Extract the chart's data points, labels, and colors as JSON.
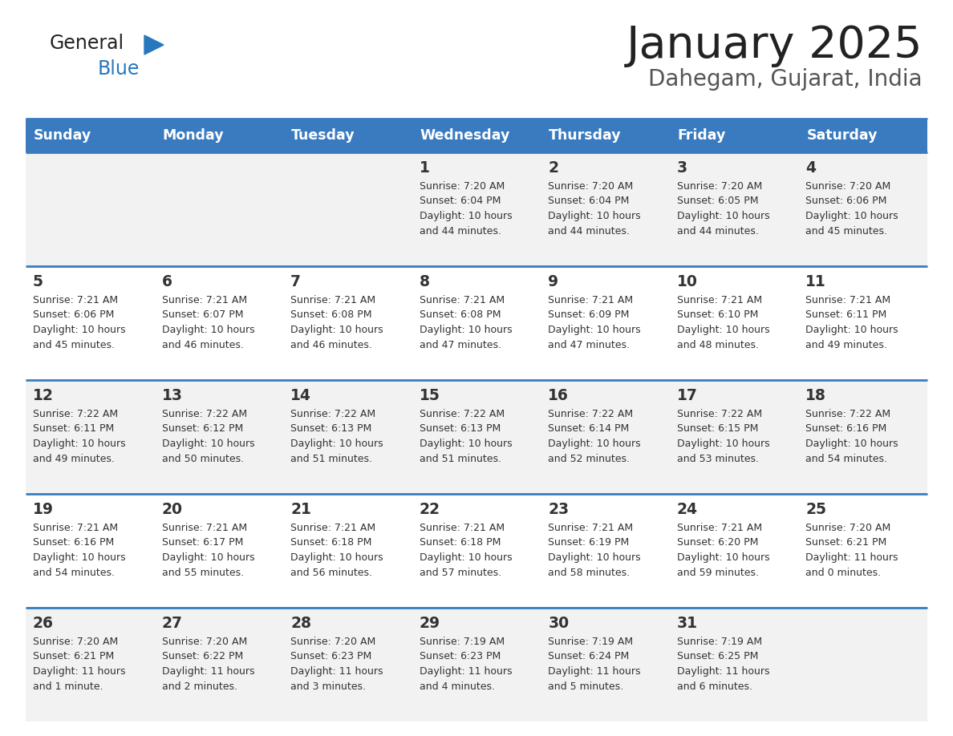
{
  "title": "January 2025",
  "subtitle": "Dahegam, Gujarat, India",
  "days_of_week": [
    "Sunday",
    "Monday",
    "Tuesday",
    "Wednesday",
    "Thursday",
    "Friday",
    "Saturday"
  ],
  "header_bg": "#3a7bbf",
  "header_text_color": "#ffffff",
  "row_bg_odd": "#f2f2f2",
  "row_bg_even": "#ffffff",
  "cell_text_color": "#333333",
  "grid_line_color": "#3a7bbf",
  "title_color": "#222222",
  "subtitle_color": "#555555",
  "logo_general_color": "#222222",
  "logo_blue_color": "#2878be",
  "logo_triangle_color": "#2878be",
  "calendar": [
    [
      null,
      null,
      null,
      {
        "day": 1,
        "sunrise": "7:20 AM",
        "sunset": "6:04 PM",
        "daylight": "10 hours and 44 minutes."
      },
      {
        "day": 2,
        "sunrise": "7:20 AM",
        "sunset": "6:04 PM",
        "daylight": "10 hours and 44 minutes."
      },
      {
        "day": 3,
        "sunrise": "7:20 AM",
        "sunset": "6:05 PM",
        "daylight": "10 hours and 44 minutes."
      },
      {
        "day": 4,
        "sunrise": "7:20 AM",
        "sunset": "6:06 PM",
        "daylight": "10 hours and 45 minutes."
      }
    ],
    [
      {
        "day": 5,
        "sunrise": "7:21 AM",
        "sunset": "6:06 PM",
        "daylight": "10 hours and 45 minutes."
      },
      {
        "day": 6,
        "sunrise": "7:21 AM",
        "sunset": "6:07 PM",
        "daylight": "10 hours and 46 minutes."
      },
      {
        "day": 7,
        "sunrise": "7:21 AM",
        "sunset": "6:08 PM",
        "daylight": "10 hours and 46 minutes."
      },
      {
        "day": 8,
        "sunrise": "7:21 AM",
        "sunset": "6:08 PM",
        "daylight": "10 hours and 47 minutes."
      },
      {
        "day": 9,
        "sunrise": "7:21 AM",
        "sunset": "6:09 PM",
        "daylight": "10 hours and 47 minutes."
      },
      {
        "day": 10,
        "sunrise": "7:21 AM",
        "sunset": "6:10 PM",
        "daylight": "10 hours and 48 minutes."
      },
      {
        "day": 11,
        "sunrise": "7:21 AM",
        "sunset": "6:11 PM",
        "daylight": "10 hours and 49 minutes."
      }
    ],
    [
      {
        "day": 12,
        "sunrise": "7:22 AM",
        "sunset": "6:11 PM",
        "daylight": "10 hours and 49 minutes."
      },
      {
        "day": 13,
        "sunrise": "7:22 AM",
        "sunset": "6:12 PM",
        "daylight": "10 hours and 50 minutes."
      },
      {
        "day": 14,
        "sunrise": "7:22 AM",
        "sunset": "6:13 PM",
        "daylight": "10 hours and 51 minutes."
      },
      {
        "day": 15,
        "sunrise": "7:22 AM",
        "sunset": "6:13 PM",
        "daylight": "10 hours and 51 minutes."
      },
      {
        "day": 16,
        "sunrise": "7:22 AM",
        "sunset": "6:14 PM",
        "daylight": "10 hours and 52 minutes."
      },
      {
        "day": 17,
        "sunrise": "7:22 AM",
        "sunset": "6:15 PM",
        "daylight": "10 hours and 53 minutes."
      },
      {
        "day": 18,
        "sunrise": "7:22 AM",
        "sunset": "6:16 PM",
        "daylight": "10 hours and 54 minutes."
      }
    ],
    [
      {
        "day": 19,
        "sunrise": "7:21 AM",
        "sunset": "6:16 PM",
        "daylight": "10 hours and 54 minutes."
      },
      {
        "day": 20,
        "sunrise": "7:21 AM",
        "sunset": "6:17 PM",
        "daylight": "10 hours and 55 minutes."
      },
      {
        "day": 21,
        "sunrise": "7:21 AM",
        "sunset": "6:18 PM",
        "daylight": "10 hours and 56 minutes."
      },
      {
        "day": 22,
        "sunrise": "7:21 AM",
        "sunset": "6:18 PM",
        "daylight": "10 hours and 57 minutes."
      },
      {
        "day": 23,
        "sunrise": "7:21 AM",
        "sunset": "6:19 PM",
        "daylight": "10 hours and 58 minutes."
      },
      {
        "day": 24,
        "sunrise": "7:21 AM",
        "sunset": "6:20 PM",
        "daylight": "10 hours and 59 minutes."
      },
      {
        "day": 25,
        "sunrise": "7:20 AM",
        "sunset": "6:21 PM",
        "daylight": "11 hours and 0 minutes."
      }
    ],
    [
      {
        "day": 26,
        "sunrise": "7:20 AM",
        "sunset": "6:21 PM",
        "daylight": "11 hours and 1 minute."
      },
      {
        "day": 27,
        "sunrise": "7:20 AM",
        "sunset": "6:22 PM",
        "daylight": "11 hours and 2 minutes."
      },
      {
        "day": 28,
        "sunrise": "7:20 AM",
        "sunset": "6:23 PM",
        "daylight": "11 hours and 3 minutes."
      },
      {
        "day": 29,
        "sunrise": "7:19 AM",
        "sunset": "6:23 PM",
        "daylight": "11 hours and 4 minutes."
      },
      {
        "day": 30,
        "sunrise": "7:19 AM",
        "sunset": "6:24 PM",
        "daylight": "11 hours and 5 minutes."
      },
      {
        "day": 31,
        "sunrise": "7:19 AM",
        "sunset": "6:25 PM",
        "daylight": "11 hours and 6 minutes."
      },
      null
    ]
  ]
}
